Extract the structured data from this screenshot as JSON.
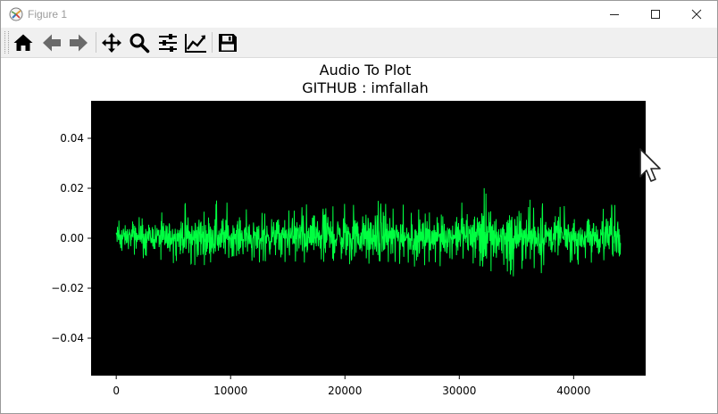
{
  "window": {
    "title": "Figure 1",
    "icon": "matplotlib-icon",
    "controls": [
      "minimize-icon",
      "maximize-icon",
      "close-icon"
    ]
  },
  "toolbar": {
    "buttons": [
      {
        "name": "home",
        "icon": "home-icon"
      },
      {
        "name": "back",
        "icon": "arrow-left-icon"
      },
      {
        "name": "forward",
        "icon": "arrow-right-icon"
      },
      {
        "name": "pan",
        "icon": "move-icon"
      },
      {
        "name": "zoom",
        "icon": "search-icon"
      },
      {
        "name": "subplots",
        "icon": "sliders-icon"
      },
      {
        "name": "edit-axis",
        "icon": "chart-line-icon"
      },
      {
        "name": "save",
        "icon": "floppy-disk-icon"
      }
    ]
  },
  "chart_data": {
    "type": "line",
    "title": "Audio To Plot",
    "subtitle": "GITHUB : imfallah",
    "xlabel": "",
    "ylabel": "",
    "xlim": [
      -2200,
      46300
    ],
    "ylim": [
      -0.055,
      0.055
    ],
    "xticks": [
      0,
      10000,
      20000,
      30000,
      40000
    ],
    "xtick_labels": [
      "0",
      "10000",
      "20000",
      "30000",
      "40000"
    ],
    "yticks": [
      0.04,
      0.02,
      0.0,
      -0.02,
      -0.04
    ],
    "ytick_labels": [
      "0.04",
      "0.02",
      "0.00",
      "−0.02",
      "−0.04"
    ],
    "grid": false,
    "axes_background": "#000000",
    "series": [
      {
        "color": "#00ff41",
        "x_range": [
          0,
          44100
        ],
        "sample_envelope": [
          {
            "x": 0,
            "min": -0.005,
            "max": 0.008
          },
          {
            "x": 5000,
            "min": -0.012,
            "max": 0.011
          },
          {
            "x": 7300,
            "min": -0.011,
            "max": 0.018
          },
          {
            "x": 12000,
            "min": -0.01,
            "max": 0.012
          },
          {
            "x": 16000,
            "min": -0.01,
            "max": 0.015
          },
          {
            "x": 21500,
            "min": -0.011,
            "max": 0.017
          },
          {
            "x": 28000,
            "min": -0.012,
            "max": 0.011
          },
          {
            "x": 32500,
            "min": -0.014,
            "max": 0.021
          },
          {
            "x": 35500,
            "min": -0.016,
            "max": 0.017
          },
          {
            "x": 40000,
            "min": -0.011,
            "max": 0.012
          },
          {
            "x": 44100,
            "min": -0.008,
            "max": 0.015
          }
        ]
      }
    ]
  }
}
